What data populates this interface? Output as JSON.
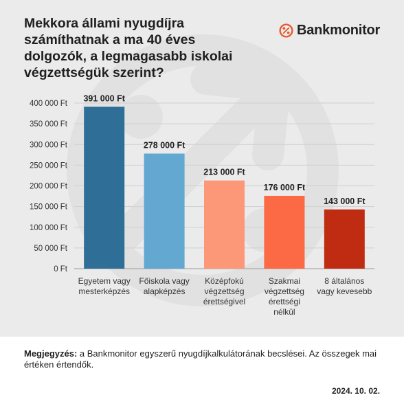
{
  "title": "Mekkora állami nyugdíjra számíthatnak a ma 40 éves dolgozók, a legmagasabb iskolai végzettségük szerint?",
  "brand": {
    "name": "Bankmonitor",
    "icon": "percent-circle-icon",
    "color": "#e8552b"
  },
  "chart_data": {
    "type": "bar",
    "categories": [
      [
        "Egyetem vagy",
        "mesterképzés"
      ],
      [
        "Főiskola vagy",
        "alapképzés"
      ],
      [
        "Középfokú",
        "végzettség",
        "érettségivel"
      ],
      [
        "Szakmai",
        "végzettség",
        "érettségi",
        "nélkül"
      ],
      [
        "8 általános",
        "vagy kevesebb"
      ]
    ],
    "values": [
      391000,
      278000,
      213000,
      176000,
      143000
    ],
    "value_labels": [
      "391 000 Ft",
      "278 000 Ft",
      "213 000 Ft",
      "176 000 Ft",
      "143 000 Ft"
    ],
    "colors": [
      "#2f6e96",
      "#62a8d1",
      "#fc9878",
      "#fb6a44",
      "#bf2c12"
    ],
    "ylim": [
      0,
      400000
    ],
    "yticks": [
      {
        "value": 0,
        "label": "0 Ft"
      },
      {
        "value": 50000,
        "label": "50 000 Ft"
      },
      {
        "value": 100000,
        "label": "100 000 Ft"
      },
      {
        "value": 150000,
        "label": "150 000 Ft"
      },
      {
        "value": 200000,
        "label": "200 000 Ft"
      },
      {
        "value": 250000,
        "label": "250 000 Ft"
      },
      {
        "value": 300000,
        "label": "300 000 Ft"
      },
      {
        "value": 350000,
        "label": "350 000 Ft"
      },
      {
        "value": 400000,
        "label": "400 000 Ft"
      }
    ],
    "grid": true,
    "xlabel": "",
    "ylabel": ""
  },
  "note": {
    "label": "Megjegyzés:",
    "text": " a Bankmonitor egyszerű nyugdíjkalkulátorának becslései. Az összegek mai értéken értendők."
  },
  "date": "2024. 10. 02."
}
